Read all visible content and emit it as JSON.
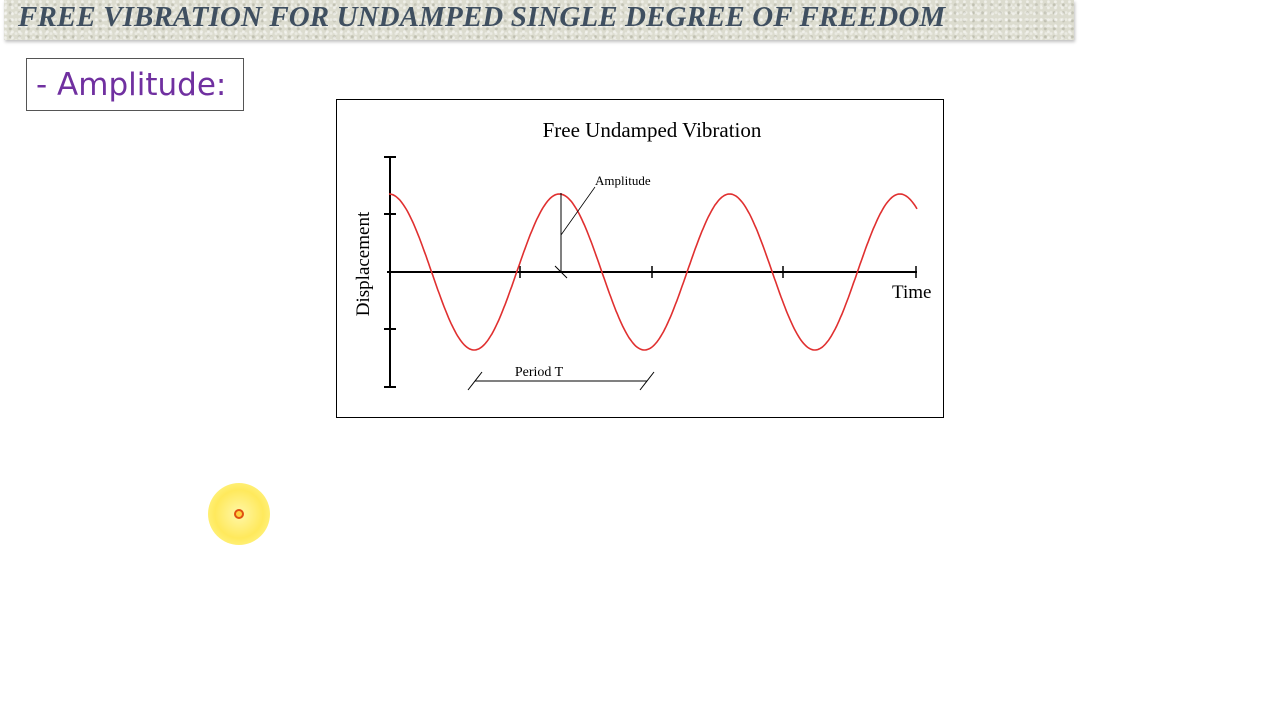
{
  "header": {
    "title": "FREE VIBRATION  FOR UNDAMPED SINGLE DEGREE OF FREEDOM"
  },
  "bullet": {
    "text": "- Amplitude:"
  },
  "figure": {
    "title": "Free Undamped Vibration",
    "y_axis_label": "Displacement",
    "x_axis_label": "Time",
    "amplitude_label": "Amplitude",
    "period_label": "Period T",
    "wave_color": "#e03030",
    "axis_color": "#000000",
    "cycles_shown": 3.1
  },
  "colors": {
    "title_text": "#3f4f60",
    "bullet_text": "#7030a0",
    "pointer": "#ffe95c"
  },
  "pointer": {
    "icon": "cursor-highlight-icon"
  }
}
